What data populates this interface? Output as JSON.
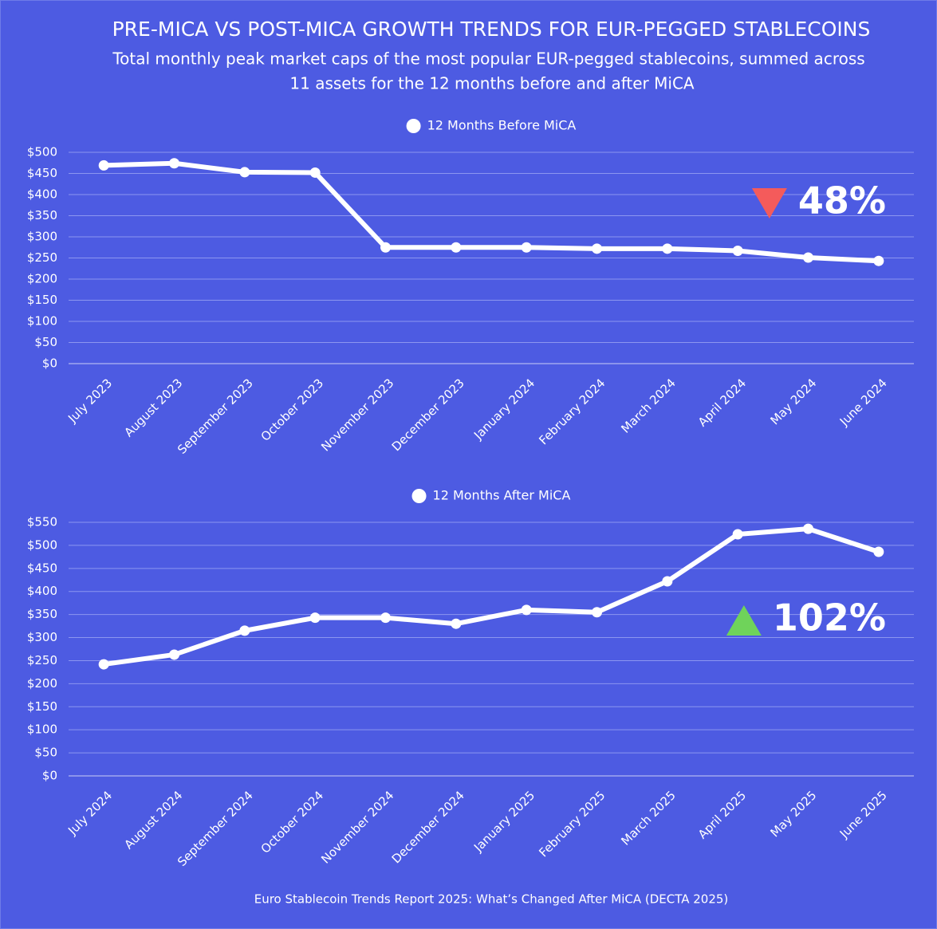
{
  "header": {
    "title": "PRE-MICA VS POST-MICA GROWTH TRENDS FOR EUR-PEGGED STABLECOINS",
    "subtitle": [
      "Total monthly peak market caps of the most popular EUR-pegged stablecoins, summed across",
      "11 assets for the 12 months before and after MiCA"
    ]
  },
  "source": "Euro Stablecoin Trends Report 2025: What’s Changed After MiCA (DECTA 2025)",
  "chart_data": [
    {
      "type": "line",
      "categories": [
        "July 2023",
        "August 2023",
        "September 2023",
        "October 2023",
        "November 2023",
        "December 2023",
        "January 2024",
        "February 2024",
        "March 2024",
        "April 2024",
        "May 2024",
        "June 2024"
      ],
      "series": [
        {
          "name": "12 Months Before MiCA",
          "color": "#ffffff",
          "values": [
            469,
            474,
            453,
            452,
            275,
            275,
            275,
            272,
            272,
            267,
            251,
            243
          ]
        }
      ],
      "ylim": [
        0,
        500
      ],
      "yticks": [
        {
          "value": 0,
          "label": "$0"
        },
        {
          "value": 50,
          "label": "$50"
        },
        {
          "value": 100,
          "label": "$100"
        },
        {
          "value": 150,
          "label": "$150"
        },
        {
          "value": 200,
          "label": "$200"
        },
        {
          "value": 250,
          "label": "$250"
        },
        {
          "value": 300,
          "label": "$300"
        },
        {
          "value": 350,
          "label": "$350"
        },
        {
          "value": 400,
          "label": "$400"
        },
        {
          "value": 450,
          "label": "$450"
        },
        {
          "value": 500,
          "label": "$500"
        }
      ],
      "grid": true,
      "annotation": "48%",
      "annotation_direction": "down",
      "annotation_color": "#f45b5b"
    },
    {
      "type": "line",
      "categories": [
        "July 2024",
        "August 2024",
        "September 2024",
        "October 2024",
        "November 2024",
        "December 2024",
        "January 2025",
        "February 2025",
        "March 2025",
        "April 2025",
        "May 2025",
        "June 2025"
      ],
      "series": [
        {
          "name": "12 Months After MiCA",
          "color": "#ffffff",
          "values": [
            242,
            263,
            315,
            343,
            343,
            330,
            360,
            355,
            422,
            524,
            536,
            486
          ]
        }
      ],
      "ylim": [
        0,
        550
      ],
      "yticks": [
        {
          "value": 0,
          "label": "$0"
        },
        {
          "value": 50,
          "label": "$50"
        },
        {
          "value": 100,
          "label": "$100"
        },
        {
          "value": 150,
          "label": "$150"
        },
        {
          "value": 200,
          "label": "$200"
        },
        {
          "value": 250,
          "label": "$250"
        },
        {
          "value": 300,
          "label": "$300"
        },
        {
          "value": 350,
          "label": "$350"
        },
        {
          "value": 400,
          "label": "$400"
        },
        {
          "value": 450,
          "label": "$450"
        },
        {
          "value": 500,
          "label": "$500"
        },
        {
          "value": 550,
          "label": "$550"
        }
      ],
      "grid": true,
      "annotation": "102%",
      "annotation_direction": "up",
      "annotation_color": "#6fd35a"
    }
  ]
}
